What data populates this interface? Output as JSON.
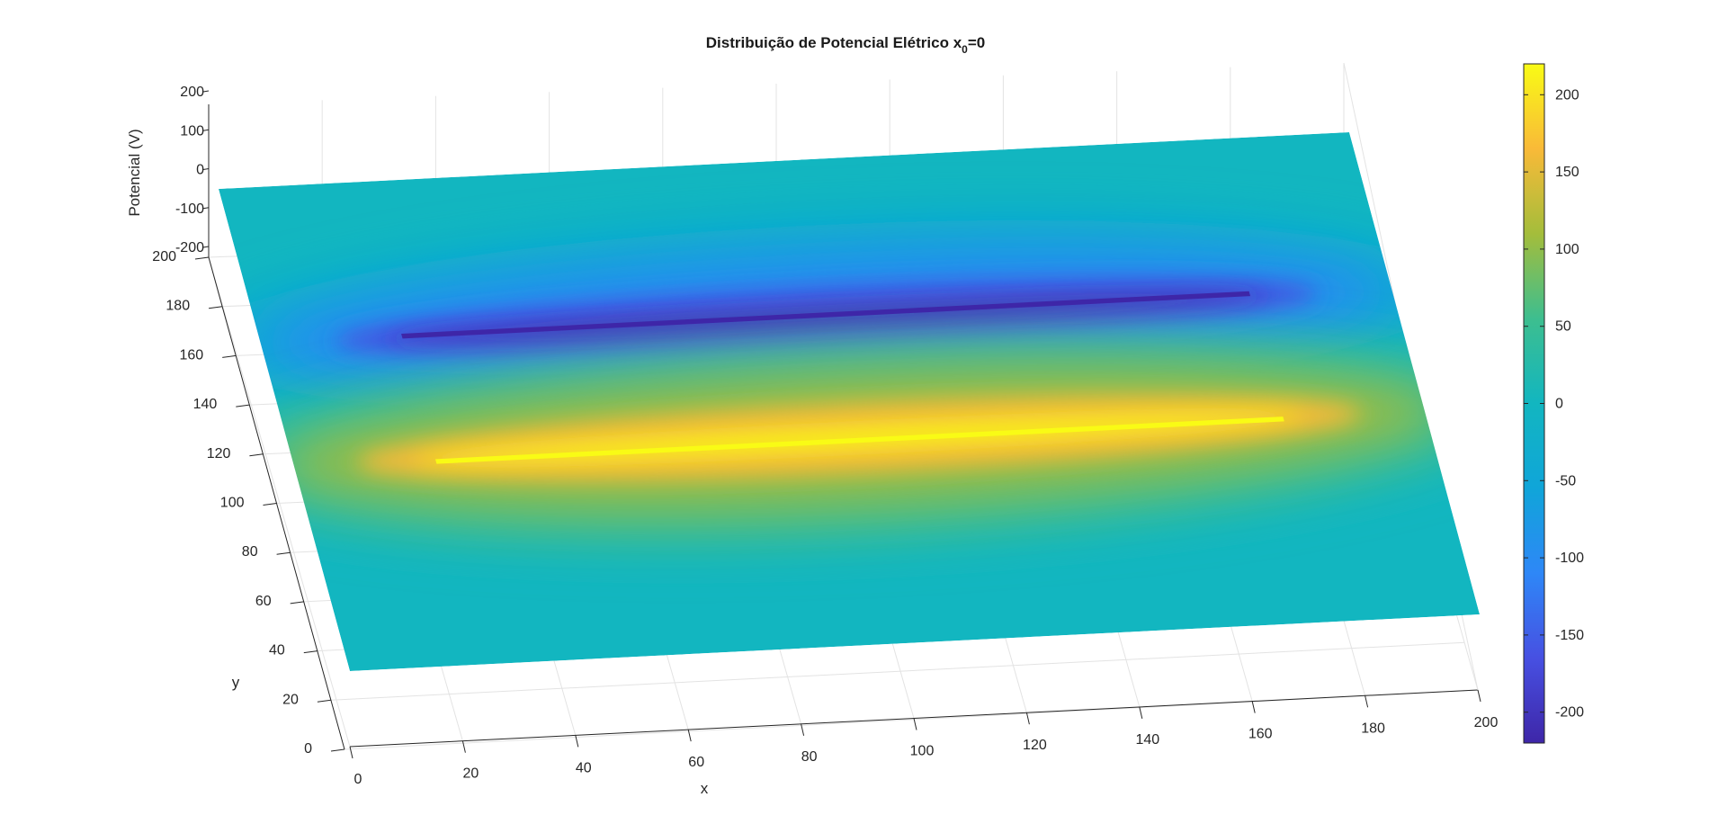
{
  "chart_data": {
    "type": "surface",
    "title": "Distribuição de Potencial Elétrico",
    "title_var": "x",
    "title_sub": "0",
    "title_eq": "=0",
    "xlabel": "x",
    "ylabel": "y",
    "zlabel": "Potencial (V)",
    "xlim": [
      0,
      200
    ],
    "ylim": [
      0,
      200
    ],
    "zlim": [
      -200,
      200
    ],
    "x_ticks": [
      0,
      20,
      40,
      60,
      80,
      100,
      120,
      140,
      160,
      180,
      200
    ],
    "y_ticks": [
      0,
      20,
      40,
      60,
      80,
      100,
      120,
      140,
      160,
      180,
      200
    ],
    "z_ticks": [
      -200,
      -100,
      0,
      100,
      200
    ],
    "colorbar": {
      "colormap": "parula",
      "clim": [
        -220,
        220
      ],
      "ticks": [
        -200,
        -150,
        -100,
        -50,
        0,
        50,
        100,
        150,
        200
      ]
    },
    "plates": [
      {
        "name": "positive",
        "value": 220,
        "y": 85,
        "x_range": [
          25,
          175
        ]
      },
      {
        "name": "negative",
        "value": -220,
        "y": 135,
        "x_range": [
          25,
          175
        ]
      }
    ],
    "grid": true,
    "colors": {
      "low": "#3e26a8",
      "zero": "#12b6c0",
      "high": "#f9fb15"
    }
  }
}
